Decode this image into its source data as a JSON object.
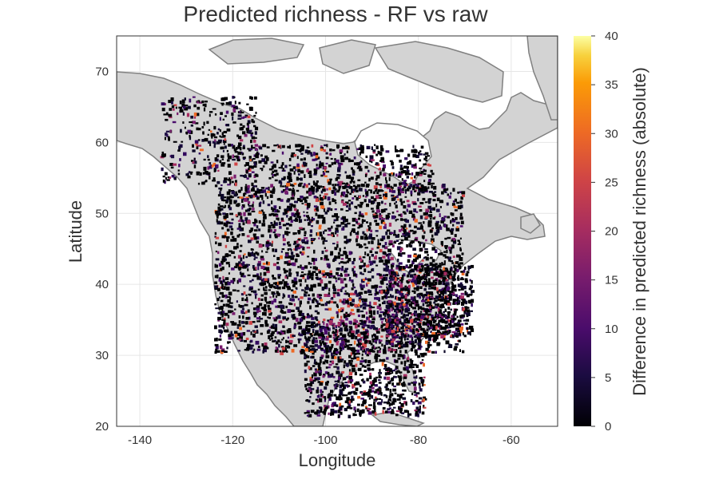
{
  "chart_data": {
    "type": "heatmap",
    "title": "Predicted richness - RF vs raw",
    "xlabel": "Longitude",
    "ylabel": "Latitude",
    "xlim": [
      -145,
      -50
    ],
    "ylim": [
      20,
      75
    ],
    "x_ticks": [
      -140,
      -120,
      -100,
      -80,
      -60
    ],
    "y_ticks": [
      20,
      30,
      40,
      50,
      60,
      70
    ],
    "x_tick_labels": [
      "-140",
      "-120",
      "-100",
      "-80",
      "-60"
    ],
    "y_tick_labels": [
      "20",
      "30",
      "40",
      "50",
      "60",
      "70"
    ],
    "grid": true,
    "colorbar": {
      "label": "Difference in predicted richness (absolute)",
      "range": [
        0,
        40
      ],
      "ticks": [
        0,
        5,
        10,
        15,
        20,
        25,
        30,
        35,
        40
      ],
      "tick_labels": [
        "0",
        "5",
        "10",
        "15",
        "20",
        "25",
        "30",
        "35",
        "40"
      ],
      "colormap": "inferno"
    },
    "background_land_color": "#d3d3d3",
    "coast_color": "#808080"
  }
}
